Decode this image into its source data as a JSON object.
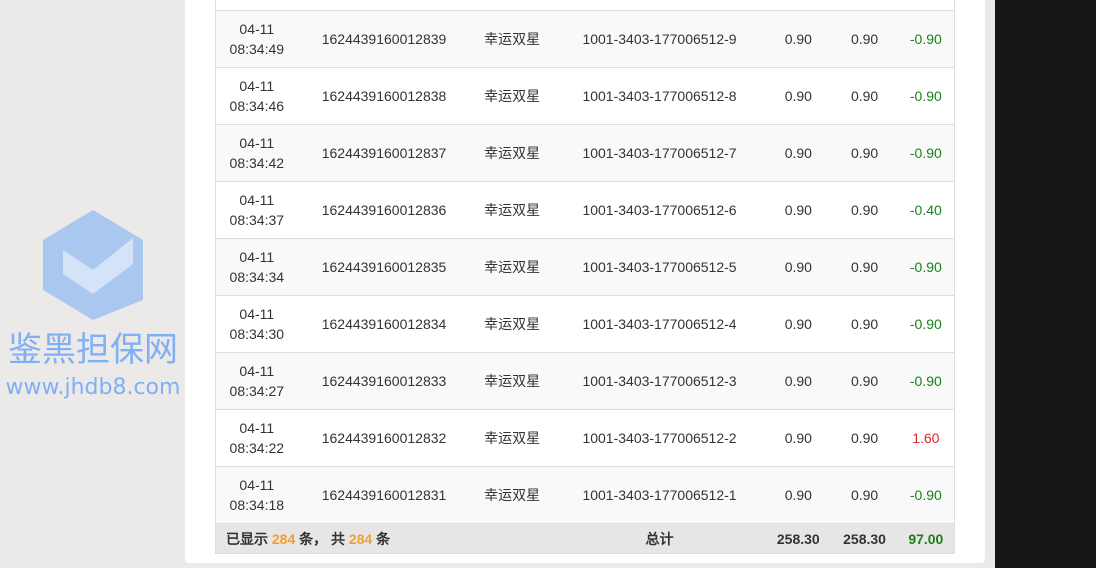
{
  "rows": [
    {
      "time_date": "04-11",
      "time_clock": "08:34:49",
      "id": "1624439160012839",
      "game": "幸运双星",
      "order": "1001-3403-177006512-9",
      "bet": "0.90",
      "valid": "0.90",
      "result": "-0.90"
    },
    {
      "time_date": "04-11",
      "time_clock": "08:34:46",
      "id": "1624439160012838",
      "game": "幸运双星",
      "order": "1001-3403-177006512-8",
      "bet": "0.90",
      "valid": "0.90",
      "result": "-0.90"
    },
    {
      "time_date": "04-11",
      "time_clock": "08:34:42",
      "id": "1624439160012837",
      "game": "幸运双星",
      "order": "1001-3403-177006512-7",
      "bet": "0.90",
      "valid": "0.90",
      "result": "-0.90"
    },
    {
      "time_date": "04-11",
      "time_clock": "08:34:37",
      "id": "1624439160012836",
      "game": "幸运双星",
      "order": "1001-3403-177006512-6",
      "bet": "0.90",
      "valid": "0.90",
      "result": "-0.40"
    },
    {
      "time_date": "04-11",
      "time_clock": "08:34:34",
      "id": "1624439160012835",
      "game": "幸运双星",
      "order": "1001-3403-177006512-5",
      "bet": "0.90",
      "valid": "0.90",
      "result": "-0.90"
    },
    {
      "time_date": "04-11",
      "time_clock": "08:34:30",
      "id": "1624439160012834",
      "game": "幸运双星",
      "order": "1001-3403-177006512-4",
      "bet": "0.90",
      "valid": "0.90",
      "result": "-0.90"
    },
    {
      "time_date": "04-11",
      "time_clock": "08:34:27",
      "id": "1624439160012833",
      "game": "幸运双星",
      "order": "1001-3403-177006512-3",
      "bet": "0.90",
      "valid": "0.90",
      "result": "-0.90"
    },
    {
      "time_date": "04-11",
      "time_clock": "08:34:22",
      "id": "1624439160012832",
      "game": "幸运双星",
      "order": "1001-3403-177006512-2",
      "bet": "0.90",
      "valid": "0.90",
      "result": "1.60"
    },
    {
      "time_date": "04-11",
      "time_clock": "08:34:18",
      "id": "1624439160012831",
      "game": "幸运双星",
      "order": "1001-3403-177006512-1",
      "bet": "0.90",
      "valid": "0.90",
      "result": "-0.90"
    }
  ],
  "footer": {
    "shown_prefix": "已显示",
    "shown_count": "284",
    "unit1": "条，",
    "total_prefix": "共",
    "total_count": "284",
    "unit2": "条",
    "total_label": "总计",
    "bet_total": "258.30",
    "valid_total": "258.30",
    "result_total": "97.00"
  },
  "watermark": {
    "title": "鉴黑担保网",
    "url": "www.jhdb8.com"
  },
  "colors": {
    "negative": "#1a7f1a",
    "positive": "#e0262b",
    "count": "#f0a030"
  }
}
